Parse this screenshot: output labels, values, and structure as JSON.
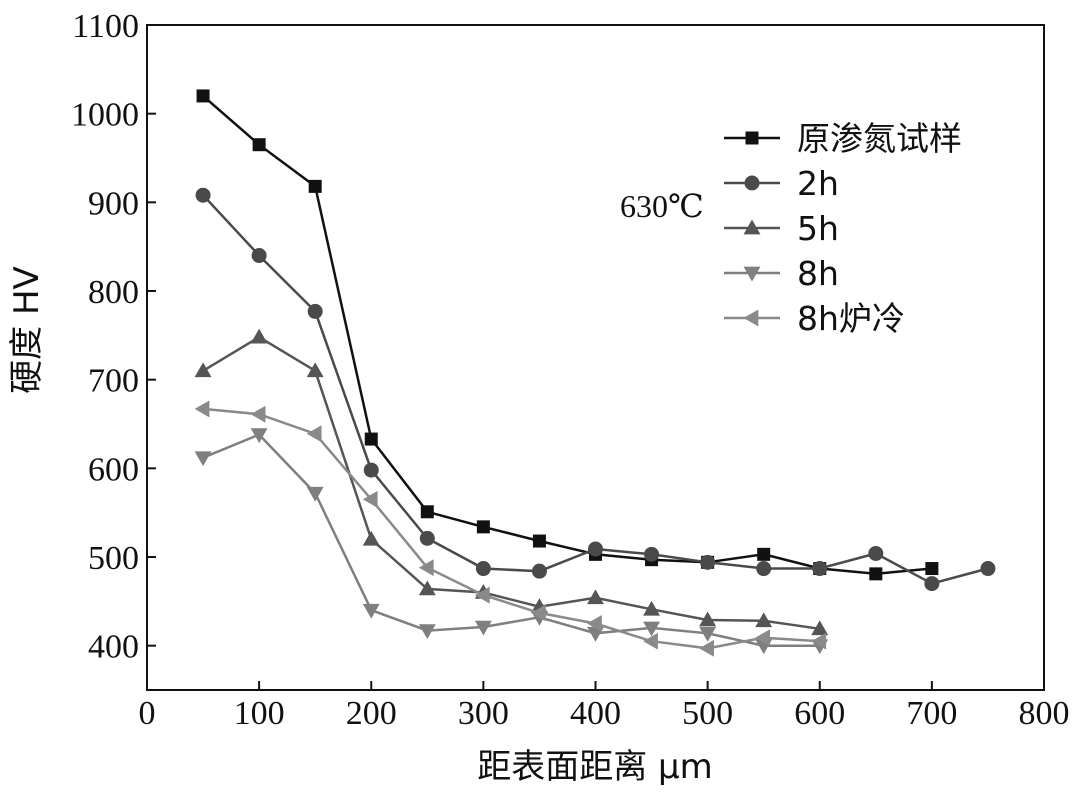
{
  "chart_data": {
    "type": "line",
    "xlabel": "距表面距离 μm",
    "ylabel": "硬度 HV",
    "xlim": [
      0,
      800
    ],
    "ylim": [
      350,
      1100
    ],
    "xticks": [
      0,
      100,
      200,
      300,
      400,
      500,
      600,
      700,
      800
    ],
    "yticks": [
      400,
      500,
      600,
      700,
      800,
      900,
      1000,
      1100
    ],
    "grid": false,
    "legend_position": "top-right",
    "annotation": "630℃",
    "series": [
      {
        "name": "原渗氮试样",
        "marker": "square",
        "color": "#111111",
        "x": [
          50,
          100,
          150,
          200,
          250,
          300,
          350,
          400,
          450,
          500,
          550,
          600,
          650,
          700
        ],
        "y": [
          1020,
          965,
          918,
          633,
          551,
          534,
          518,
          503,
          497,
          494,
          503,
          487,
          481,
          487
        ]
      },
      {
        "name": "2h",
        "marker": "circle",
        "color": "#4a4a4a",
        "x": [
          50,
          100,
          150,
          200,
          250,
          300,
          350,
          400,
          450,
          500,
          550,
          600,
          650,
          700,
          750
        ],
        "y": [
          908,
          840,
          777,
          598,
          521,
          487,
          484,
          509,
          503,
          494,
          487,
          487,
          504,
          470,
          487
        ]
      },
      {
        "name": "5h",
        "marker": "triangle-up",
        "color": "#555555",
        "x": [
          50,
          100,
          150,
          200,
          250,
          300,
          350,
          400,
          450,
          500,
          550,
          600
        ],
        "y": [
          710,
          748,
          710,
          520,
          464,
          460,
          444,
          454,
          441,
          429,
          428,
          419
        ]
      },
      {
        "name": "8h",
        "marker": "triangle-down",
        "color": "#7f7f7f",
        "x": [
          50,
          100,
          150,
          200,
          250,
          300,
          350,
          400,
          450,
          500,
          550,
          600
        ],
        "y": [
          612,
          638,
          572,
          440,
          417,
          421,
          432,
          414,
          420,
          414,
          400,
          400
        ]
      },
      {
        "name": "8h炉冷",
        "marker": "triangle-left",
        "color": "#8a8a8a",
        "x": [
          50,
          100,
          150,
          200,
          250,
          300,
          350,
          400,
          450,
          500,
          550,
          600
        ],
        "y": [
          667,
          661,
          639,
          565,
          488,
          457,
          437,
          425,
          405,
          397,
          409,
          405
        ]
      }
    ]
  }
}
